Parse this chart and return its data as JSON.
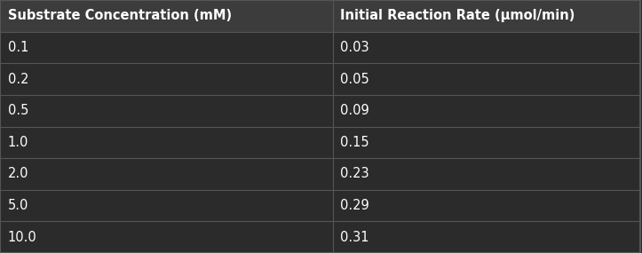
{
  "col_headers": [
    "Substrate Concentration (mM)",
    "Initial Reaction Rate (μmol/min)"
  ],
  "rows": [
    [
      "0.1",
      "0.03"
    ],
    [
      "0.2",
      "0.05"
    ],
    [
      "0.5",
      "0.09"
    ],
    [
      "1.0",
      "0.15"
    ],
    [
      "2.0",
      "0.23"
    ],
    [
      "5.0",
      "0.29"
    ],
    [
      "10.0",
      "0.31"
    ]
  ],
  "background_color": "#2b2b2b",
  "header_bg_color": "#3c3c3c",
  "row_bg_color": "#2b2b2b",
  "grid_line_color": "#555555",
  "text_color": "#ffffff",
  "header_text_color": "#ffffff",
  "col_split": 0.52,
  "header_font_size": 10.5,
  "row_font_size": 10.5,
  "border_color": "#555555"
}
